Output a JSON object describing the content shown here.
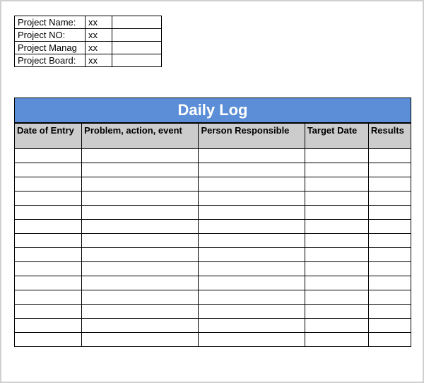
{
  "info": {
    "fields": [
      {
        "label": "Project Name:",
        "value": "xx"
      },
      {
        "label": "Project NO:",
        "value": "xx"
      },
      {
        "label": "Project Manag",
        "value": "xx"
      },
      {
        "label": "Project Board:",
        "value": "xx"
      }
    ]
  },
  "log": {
    "title": "Daily Log",
    "title_bg": "#5b8ed6",
    "title_color": "#ffffff",
    "header_bg": "#cccccc",
    "columns": [
      "Date of Entry",
      "Problem, action, event",
      "Person Responsible",
      "Target Date",
      "Results"
    ],
    "rows": [
      [
        "",
        "",
        "",
        "",
        ""
      ],
      [
        "",
        "",
        "",
        "",
        ""
      ],
      [
        "",
        "",
        "",
        "",
        ""
      ],
      [
        "",
        "",
        "",
        "",
        ""
      ],
      [
        "",
        "",
        "",
        "",
        ""
      ],
      [
        "",
        "",
        "",
        "",
        ""
      ],
      [
        "",
        "",
        "",
        "",
        ""
      ],
      [
        "",
        "",
        "",
        "",
        ""
      ],
      [
        "",
        "",
        "",
        "",
        ""
      ],
      [
        "",
        "",
        "",
        "",
        ""
      ],
      [
        "",
        "",
        "",
        "",
        ""
      ],
      [
        "",
        "",
        "",
        "",
        ""
      ],
      [
        "",
        "",
        "",
        "",
        ""
      ],
      [
        "",
        "",
        "",
        "",
        ""
      ]
    ]
  }
}
